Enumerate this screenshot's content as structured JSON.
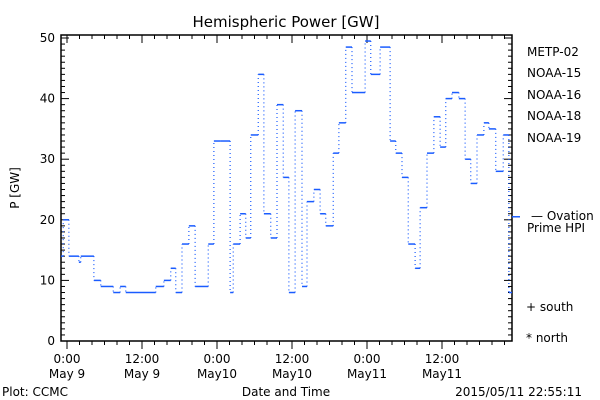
{
  "chart_data": {
    "type": "line",
    "title": "Hemispheric Power [GW]",
    "xlabel": "Date and Time",
    "ylabel": "P [GW]",
    "ylim": [
      0,
      50
    ],
    "xlim_hours_from_may9_0000": [
      -1,
      71.2
    ],
    "yticks": [
      "0",
      "10",
      "20",
      "30",
      "40",
      "50"
    ],
    "xticks": [
      {
        "hour": 0,
        "time": "0:00",
        "date": "May 9"
      },
      {
        "hour": 12,
        "time": "12:00",
        "date": "May 9"
      },
      {
        "hour": 24,
        "time": "0:00",
        "date": "May10"
      },
      {
        "hour": 36,
        "time": "12:00",
        "date": "May10"
      },
      {
        "hour": 48,
        "time": "0:00",
        "date": "May11"
      },
      {
        "hour": 60,
        "time": "12:00",
        "date": "May11"
      }
    ],
    "series": [
      {
        "name": "NOAA-15",
        "color": "#1a5cff",
        "style": "step",
        "steps": [
          [
            -1,
            14
          ],
          [
            -0.6,
            20
          ],
          [
            0.3,
            14
          ],
          [
            1.9,
            13
          ],
          [
            2.2,
            14
          ],
          [
            4.3,
            10
          ],
          [
            5.4,
            9
          ],
          [
            7.4,
            8
          ],
          [
            8.5,
            9
          ],
          [
            9.4,
            8
          ],
          [
            14.2,
            9
          ],
          [
            15.5,
            10
          ],
          [
            16.6,
            12
          ],
          [
            17.4,
            8
          ],
          [
            18.4,
            16
          ],
          [
            19.5,
            19
          ],
          [
            20.5,
            9
          ],
          [
            22.6,
            16
          ],
          [
            23.5,
            33
          ],
          [
            24.5,
            33
          ],
          [
            26.1,
            8
          ],
          [
            26.6,
            16
          ],
          [
            27.7,
            21
          ],
          [
            28.6,
            17
          ],
          [
            29.4,
            34
          ],
          [
            30.6,
            44
          ],
          [
            31.5,
            21
          ],
          [
            32.6,
            17
          ],
          [
            33.6,
            39
          ],
          [
            34.6,
            27
          ],
          [
            35.5,
            8
          ],
          [
            36.5,
            38
          ],
          [
            37.6,
            9
          ],
          [
            38.4,
            23
          ],
          [
            39.5,
            25
          ],
          [
            40.5,
            21
          ],
          [
            41.4,
            19
          ],
          [
            42.6,
            31
          ],
          [
            43.5,
            36
          ],
          [
            44.6,
            48.5
          ],
          [
            45.6,
            41
          ],
          [
            47.7,
            49.5
          ],
          [
            48.6,
            44
          ],
          [
            50.1,
            48.5
          ],
          [
            51.7,
            33
          ],
          [
            52.6,
            31
          ],
          [
            53.6,
            27
          ],
          [
            54.6,
            16
          ],
          [
            55.7,
            12
          ],
          [
            56.5,
            22
          ],
          [
            57.6,
            31
          ],
          [
            58.7,
            37
          ],
          [
            59.7,
            32
          ],
          [
            60.6,
            40
          ],
          [
            61.6,
            41
          ],
          [
            62.7,
            40
          ],
          [
            63.7,
            30
          ],
          [
            64.6,
            26
          ],
          [
            65.6,
            34
          ],
          [
            66.7,
            36
          ],
          [
            67.5,
            35
          ],
          [
            68.6,
            28
          ],
          [
            69.8,
            34
          ],
          [
            70.7,
            8
          ]
        ],
        "end_hour": 71.2
      }
    ],
    "ovation_value": 20.5,
    "legend": {
      "placement": "right",
      "items": [
        {
          "label": "METP-02",
          "color": "#000000"
        },
        {
          "label": "NOAA-15",
          "color": "#0a2ee0"
        },
        {
          "label": "NOAA-16",
          "color": "#10b4ff"
        },
        {
          "label": "NOAA-18",
          "color": "#30f060"
        },
        {
          "label": "NOAA-19",
          "color": "#ff8c00"
        }
      ],
      "ovation_line1": "— Ovation",
      "ovation_line2": "Prime HPI",
      "ovation_color": "#1a50e0",
      "south": "+ south",
      "north": "* north"
    },
    "footer_left": "Plot: CCMC",
    "footer_right": "2015/05/11 22:55:11"
  }
}
